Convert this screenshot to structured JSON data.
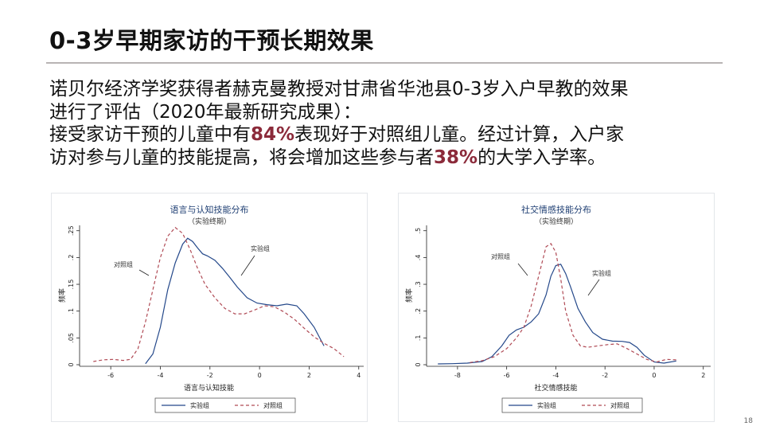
{
  "slide": {
    "title": "0-3岁早期家访的干预长期效果",
    "paragraph": {
      "line1": "诺贝尔经济学奖获得者赫克曼教授对甘肃省华池县0-3岁入户早教的效果",
      "line2": "进行了评估（2020年最新研究成果）：",
      "line3_a": "接受家访干预的儿童中有",
      "line3_hl": "84%",
      "line3_b": "表现好于对照组儿童。经过计算，入户家",
      "line4_a": "访对参与儿童的技能提高，将会增加这些参与者",
      "line4_hl": "38%",
      "line4_b": "的大学入学率。"
    },
    "page_number": "18",
    "highlight_color": "#8b2a3a"
  },
  "chart_data": [
    {
      "type": "line",
      "title": "语言与认知技能分布",
      "subtitle": "（实验终期）",
      "xlabel": "语言与认知技能",
      "ylabel": "频率",
      "xlim": [
        -7,
        4.2
      ],
      "ylim": [
        0,
        0.26
      ],
      "xticks": [
        -6,
        -4,
        -2,
        0,
        2,
        4
      ],
      "yticks": [
        0,
        0.05,
        0.1,
        0.15,
        0.2,
        0.25
      ],
      "ytick_labels": [
        "0",
        ".05",
        ".1",
        ".15",
        ".2",
        ".25"
      ],
      "annotations": [
        "实验组",
        "对照组"
      ],
      "legend_position": "bottom",
      "series": [
        {
          "name": "实验组",
          "style": "solid",
          "color": "#24488a",
          "x": [
            -4.6,
            -4.3,
            -4.0,
            -3.7,
            -3.4,
            -3.1,
            -2.9,
            -2.7,
            -2.5,
            -2.3,
            -2.1,
            -1.8,
            -1.5,
            -1.2,
            -0.9,
            -0.5,
            -0.1,
            0.3,
            0.7,
            1.1,
            1.5,
            1.8,
            2.2,
            2.6
          ],
          "y": [
            0.002,
            0.02,
            0.07,
            0.14,
            0.19,
            0.225,
            0.236,
            0.23,
            0.218,
            0.207,
            0.203,
            0.195,
            0.18,
            0.163,
            0.145,
            0.125,
            0.115,
            0.112,
            0.11,
            0.113,
            0.11,
            0.095,
            0.07,
            0.035
          ]
        },
        {
          "name": "对照组",
          "style": "dashed",
          "color": "#b04a55",
          "x": [
            -6.7,
            -6.3,
            -5.9,
            -5.5,
            -5.2,
            -4.9,
            -4.6,
            -4.3,
            -4.0,
            -3.7,
            -3.4,
            -3.1,
            -2.8,
            -2.5,
            -2.2,
            -1.8,
            -1.4,
            -1.0,
            -0.6,
            -0.2,
            0.2,
            0.6,
            1.0,
            1.4,
            1.8,
            2.2,
            2.6,
            3.0,
            3.4
          ],
          "y": [
            0.006,
            0.009,
            0.01,
            0.008,
            0.01,
            0.03,
            0.08,
            0.14,
            0.2,
            0.24,
            0.256,
            0.245,
            0.215,
            0.18,
            0.15,
            0.125,
            0.105,
            0.095,
            0.095,
            0.102,
            0.11,
            0.108,
            0.098,
            0.085,
            0.068,
            0.052,
            0.04,
            0.03,
            0.015
          ]
        }
      ]
    },
    {
      "type": "line",
      "title": "社交情感技能分布",
      "subtitle": "（实验终期）",
      "xlabel": "社交情感技能",
      "ylabel": "频率",
      "xlim": [
        -9,
        2.3
      ],
      "ylim": [
        0,
        0.52
      ],
      "xticks": [
        -8,
        -6,
        -4,
        -2,
        0,
        2
      ],
      "yticks": [
        0,
        0.1,
        0.2,
        0.3,
        0.4,
        0.5
      ],
      "ytick_labels": [
        "0",
        ".1",
        ".2",
        ".3",
        ".4",
        ".5"
      ],
      "annotations": [
        "对照组",
        "实验组"
      ],
      "legend_position": "bottom",
      "series": [
        {
          "name": "实验组",
          "style": "solid",
          "color": "#24488a",
          "x": [
            -8.8,
            -8.2,
            -7.6,
            -7.0,
            -6.6,
            -6.2,
            -5.9,
            -5.6,
            -5.3,
            -5.0,
            -4.7,
            -4.4,
            -4.2,
            -4.0,
            -3.8,
            -3.6,
            -3.4,
            -3.1,
            -2.8,
            -2.5,
            -2.1,
            -1.7,
            -1.3,
            -1.0,
            -0.7,
            -0.4,
            0.0,
            0.4,
            0.9
          ],
          "y": [
            0.003,
            0.004,
            0.006,
            0.012,
            0.03,
            0.07,
            0.11,
            0.13,
            0.14,
            0.16,
            0.19,
            0.26,
            0.33,
            0.37,
            0.375,
            0.34,
            0.29,
            0.21,
            0.16,
            0.12,
            0.095,
            0.088,
            0.087,
            0.083,
            0.065,
            0.035,
            0.01,
            0.006,
            0.014
          ]
        },
        {
          "name": "对照组",
          "style": "dashed",
          "color": "#b04a55",
          "x": [
            -7.5,
            -7.0,
            -6.5,
            -6.0,
            -5.6,
            -5.3,
            -5.0,
            -4.7,
            -4.4,
            -4.2,
            -4.0,
            -3.8,
            -3.6,
            -3.3,
            -3.0,
            -2.7,
            -2.3,
            -1.9,
            -1.5,
            -1.1,
            -0.7,
            -0.3,
            0.1,
            0.5,
            0.9
          ],
          "y": [
            0.008,
            0.015,
            0.03,
            0.06,
            0.1,
            0.14,
            0.22,
            0.33,
            0.44,
            0.452,
            0.42,
            0.32,
            0.2,
            0.11,
            0.07,
            0.065,
            0.07,
            0.075,
            0.078,
            0.06,
            0.04,
            0.02,
            0.01,
            0.02,
            0.018
          ]
        }
      ]
    }
  ]
}
